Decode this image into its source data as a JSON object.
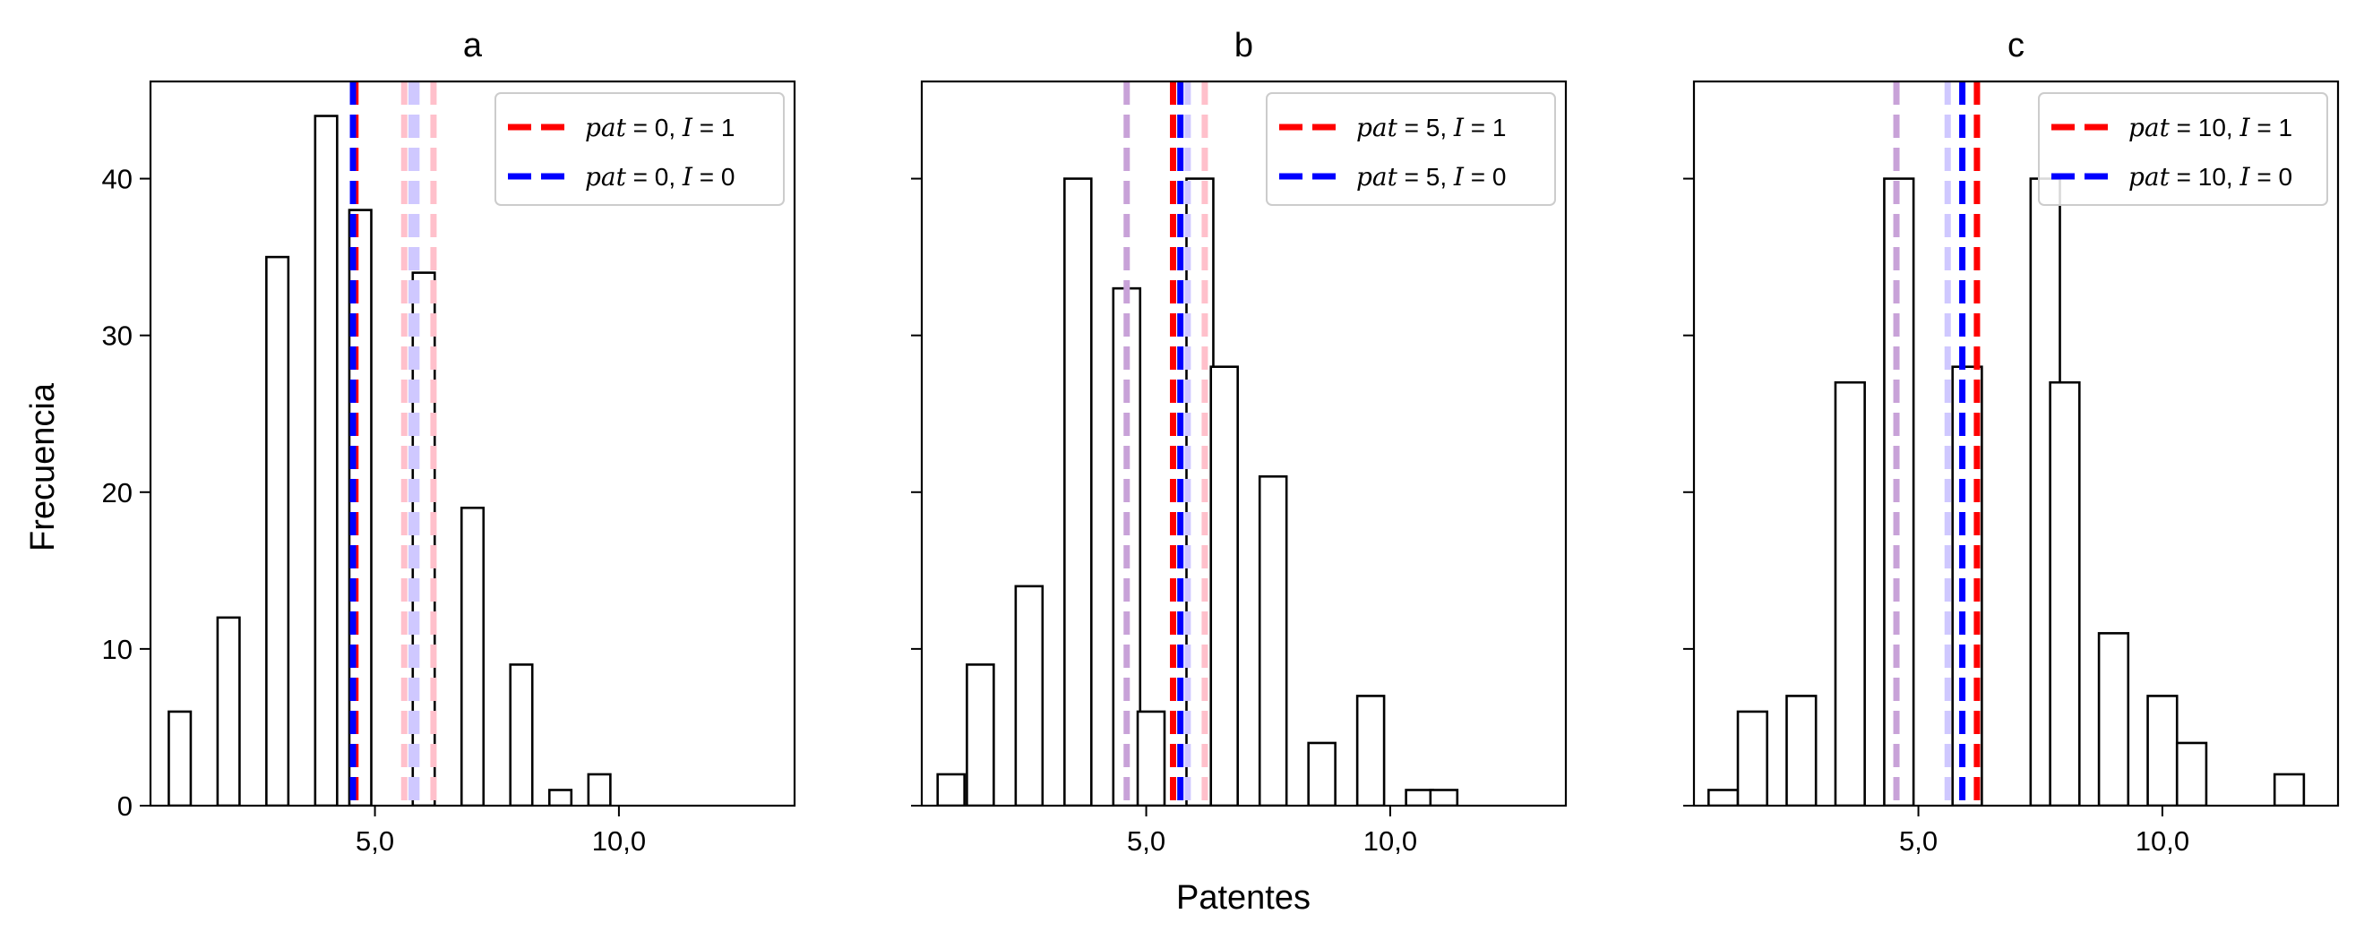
{
  "figure": {
    "ylabel": "Frecuencia",
    "xlabel": "Patentes"
  },
  "chart_data": [
    {
      "type": "bar",
      "title": "a",
      "xlim": [
        0.4,
        13.6
      ],
      "ylim": [
        0,
        46.2
      ],
      "xticks": [
        5,
        10
      ],
      "xtick_labels": [
        "5,0",
        "10,0"
      ],
      "yticks": [
        0,
        10,
        20,
        30,
        40
      ],
      "ytick_labels": [
        "0",
        "10",
        "20",
        "30",
        "40"
      ],
      "grid": false,
      "legend_position": "top-right",
      "bin_width": 0.45,
      "bins": [
        {
          "x": 1.0,
          "count": 6
        },
        {
          "x": 2.0,
          "count": 12
        },
        {
          "x": 3.0,
          "count": 35
        },
        {
          "x": 4.0,
          "count": 44
        },
        {
          "x": 4.7,
          "count": 38
        },
        {
          "x": 6.0,
          "count": 34
        },
        {
          "x": 7.0,
          "count": 19
        },
        {
          "x": 8.0,
          "count": 9
        },
        {
          "x": 8.8,
          "count": 1
        },
        {
          "x": 9.6,
          "count": 2
        }
      ],
      "vlines": [
        {
          "x": 4.6,
          "color": "#ff0000",
          "alpha": 1
        },
        {
          "x": 4.55,
          "color": "#0000ff",
          "alpha": 1
        },
        {
          "x": 5.6,
          "color": "#ffc0cb",
          "alpha": 1
        },
        {
          "x": 5.75,
          "color": "#cfc8ff",
          "alpha": 1
        },
        {
          "x": 5.85,
          "color": "#cfc8ff",
          "alpha": 1
        },
        {
          "x": 6.2,
          "color": "#ffc0cb",
          "alpha": 1
        }
      ],
      "legend": [
        {
          "label_prefix": "pat",
          "label_mid": " = 0, ",
          "label_var": "I",
          "label_end": " = 1",
          "color": "#ff0000"
        },
        {
          "label_prefix": "pat",
          "label_mid": " = 0, ",
          "label_var": "I",
          "label_end": " = 0",
          "color": "#0000ff"
        }
      ]
    },
    {
      "type": "bar",
      "title": "b",
      "xlim": [
        0.4,
        13.6
      ],
      "ylim": [
        0,
        46.2
      ],
      "xticks": [
        5,
        10
      ],
      "xtick_labels": [
        "5,0",
        "10,0"
      ],
      "yticks": [
        0,
        10,
        20,
        30,
        40
      ],
      "ytick_labels": [
        "",
        "",
        "",
        "",
        ""
      ],
      "grid": false,
      "legend_position": "top-right",
      "bin_width": 0.55,
      "bins": [
        {
          "x": 1.0,
          "count": 2
        },
        {
          "x": 1.6,
          "count": 9
        },
        {
          "x": 2.6,
          "count": 14
        },
        {
          "x": 3.6,
          "count": 40
        },
        {
          "x": 4.6,
          "count": 33
        },
        {
          "x": 5.1,
          "count": 6
        },
        {
          "x": 6.1,
          "count": 40
        },
        {
          "x": 6.6,
          "count": 28
        },
        {
          "x": 7.6,
          "count": 21
        },
        {
          "x": 8.6,
          "count": 4
        },
        {
          "x": 9.6,
          "count": 7
        },
        {
          "x": 10.6,
          "count": 1
        },
        {
          "x": 11.1,
          "count": 1
        }
      ],
      "vlines": [
        {
          "x": 4.6,
          "color": "#c8a2d8",
          "alpha": 1
        },
        {
          "x": 5.55,
          "color": "#ff0000",
          "alpha": 1
        },
        {
          "x": 5.7,
          "color": "#0000ff",
          "alpha": 1
        },
        {
          "x": 5.85,
          "color": "#cfc8ff",
          "alpha": 1
        },
        {
          "x": 6.2,
          "color": "#ffc0cb",
          "alpha": 1
        }
      ],
      "legend": [
        {
          "label_prefix": "pat",
          "label_mid": " = 5, ",
          "label_var": "I",
          "label_end": " = 1",
          "color": "#ff0000"
        },
        {
          "label_prefix": "pat",
          "label_mid": " = 5, ",
          "label_var": "I",
          "label_end": " = 0",
          "color": "#0000ff"
        }
      ]
    },
    {
      "type": "bar",
      "title": "c",
      "xlim": [
        0.4,
        13.6
      ],
      "ylim": [
        0,
        46.2
      ],
      "xticks": [
        5,
        10
      ],
      "xtick_labels": [
        "5,0",
        "10,0"
      ],
      "yticks": [
        0,
        10,
        20,
        30,
        40
      ],
      "ytick_labels": [
        "",
        "",
        "",
        "",
        ""
      ],
      "grid": false,
      "legend_position": "top-right",
      "bin_width": 0.6,
      "bins": [
        {
          "x": 1.0,
          "count": 1
        },
        {
          "x": 1.6,
          "count": 6
        },
        {
          "x": 2.6,
          "count": 7
        },
        {
          "x": 3.6,
          "count": 27
        },
        {
          "x": 4.6,
          "count": 40
        },
        {
          "x": 6.0,
          "count": 28
        },
        {
          "x": 7.6,
          "count": 40
        },
        {
          "x": 8.0,
          "count": 27
        },
        {
          "x": 9.0,
          "count": 11
        },
        {
          "x": 10.0,
          "count": 7
        },
        {
          "x": 10.6,
          "count": 4
        },
        {
          "x": 12.6,
          "count": 2
        }
      ],
      "vlines": [
        {
          "x": 4.55,
          "color": "#c8a2d8",
          "alpha": 1
        },
        {
          "x": 5.6,
          "color": "#cfc8ff",
          "alpha": 1
        },
        {
          "x": 5.9,
          "color": "#0000ff",
          "alpha": 1
        },
        {
          "x": 6.2,
          "color": "#ff0000",
          "alpha": 1
        }
      ],
      "legend": [
        {
          "label_prefix": "pat",
          "label_mid": " = 10, ",
          "label_var": "I",
          "label_end": " = 1",
          "color": "#ff0000"
        },
        {
          "label_prefix": "pat",
          "label_mid": " = 10, ",
          "label_var": "I",
          "label_end": " = 0",
          "color": "#0000ff"
        }
      ]
    }
  ]
}
